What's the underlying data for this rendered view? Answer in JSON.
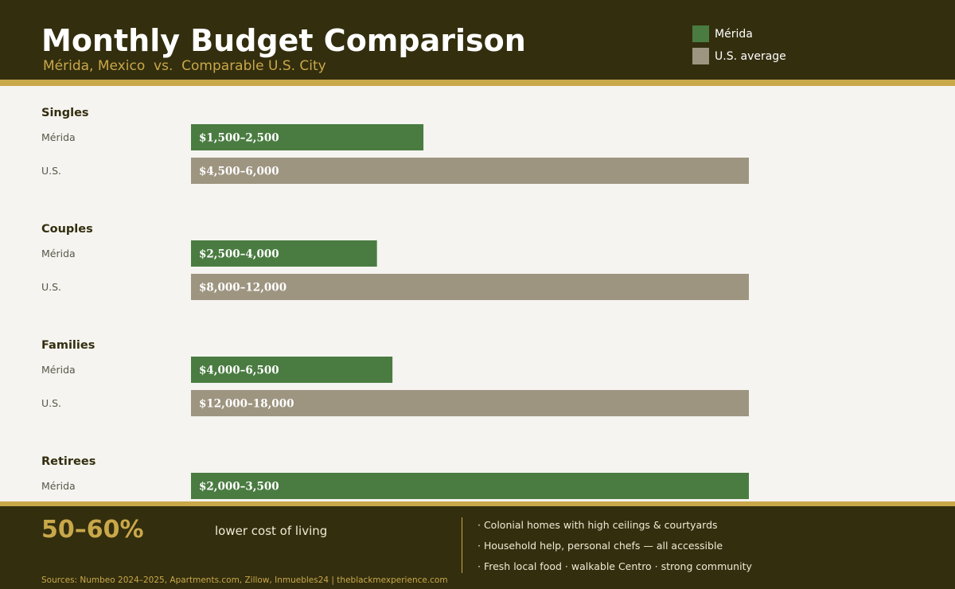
{
  "header": {
    "title": "Monthly Budget Comparison",
    "subtitle": "Mérida, Mexico  vs.  Comparable U.S. City"
  },
  "legend": [
    {
      "label": "Mérida",
      "color": "#4a7c41"
    },
    {
      "label": "U.S. average",
      "color": "#9e9581"
    }
  ],
  "chart_data": {
    "type": "bar",
    "orientation": "horizontal",
    "title": "Monthly Budget Comparison",
    "subtitle": "Mérida, Mexico  vs.  Comparable U.S. City",
    "unit": "USD per month",
    "series_colors": {
      "Mérida": "#4a7c41",
      "U.S. average": "#9e9581"
    },
    "groups": [
      {
        "name": "Singles",
        "rows": [
          {
            "label": "Mérida",
            "series": "Mérida",
            "range": [
              1500,
              2500
            ],
            "value_label": "$1,500–2,500"
          },
          {
            "label": "U.S.",
            "series": "U.S. average",
            "range": [
              4500,
              6000
            ],
            "value_label": "$4,500–6,000"
          }
        ]
      },
      {
        "name": "Couples",
        "rows": [
          {
            "label": "Mérida",
            "series": "Mérida",
            "range": [
              2500,
              4000
            ],
            "value_label": "$2,500–4,000"
          },
          {
            "label": "U.S.",
            "series": "U.S. average",
            "range": [
              8000,
              12000
            ],
            "value_label": "$8,000–12,000"
          }
        ]
      },
      {
        "name": "Families",
        "rows": [
          {
            "label": "Mérida",
            "series": "Mérida",
            "range": [
              4000,
              6500
            ],
            "value_label": "$4,000–6,500"
          },
          {
            "label": "U.S.",
            "series": "U.S. average",
            "range": [
              12000,
              18000
            ],
            "value_label": "$12,000–18,000"
          }
        ]
      },
      {
        "name": "Retirees",
        "rows": [
          {
            "label": "Mérida",
            "series": "Mérida",
            "range": [
              2000,
              3500
            ],
            "value_label": "$2,000–3,500"
          }
        ]
      }
    ]
  },
  "footer": {
    "stat_value": "50–60%",
    "stat_label": "lower cost of living",
    "bullets": [
      "Colonial homes with high ceilings & courtyards",
      "Household help, personal chefs — all accessible",
      "Fresh local food · walkable Centro · strong community"
    ],
    "sources": "Sources: Numbeo 2024–2025, Apartments.com, Zillow, Inmuebles24  |  theblackmexperience.com"
  }
}
